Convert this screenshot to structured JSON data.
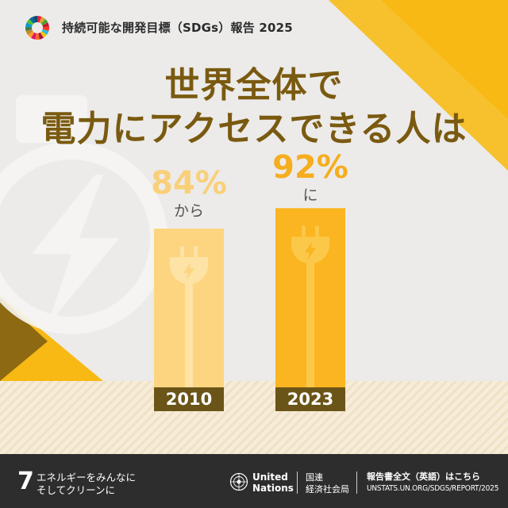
{
  "header": {
    "title": "持続可能な開発目標（SDGs）報告 2025"
  },
  "headline": {
    "line1": "世界全体で",
    "line2": "電力にアクセスできる人は"
  },
  "chart_data": {
    "type": "bar",
    "categories": [
      "2010",
      "2023"
    ],
    "values": [
      84,
      92
    ],
    "value_labels": [
      "84%",
      "92%"
    ],
    "value_captions": [
      "から",
      "に"
    ],
    "unit": "%",
    "series_colors": [
      "#fdd580",
      "#fab520"
    ],
    "label_colors": [
      "#f9d079",
      "#f6ad1e"
    ],
    "ylim": [
      0,
      100
    ]
  },
  "footer": {
    "goal_number": "7",
    "goal_name_line1": "エネルギーをみんなに",
    "goal_name_line2": "そしてクリーンに",
    "un_line1": "United",
    "un_line2": "Nations",
    "unic_line1": "国連",
    "unic_line2": "経済社会局",
    "report_label": "報告書全文（英語）はこちら",
    "report_url": "UNSTATS.UN.ORG/SDGS/REPORT/2025"
  },
  "colors": {
    "accent_yellow": "#f9b914",
    "headline_brown": "#7a5a10",
    "footer_bg": "#2d2d2d",
    "year_label_bg": "#6b5417"
  },
  "icons": [
    "sdg-wheel-icon",
    "lightning-bolt-icon",
    "plug-icon",
    "un-emblem-icon"
  ]
}
